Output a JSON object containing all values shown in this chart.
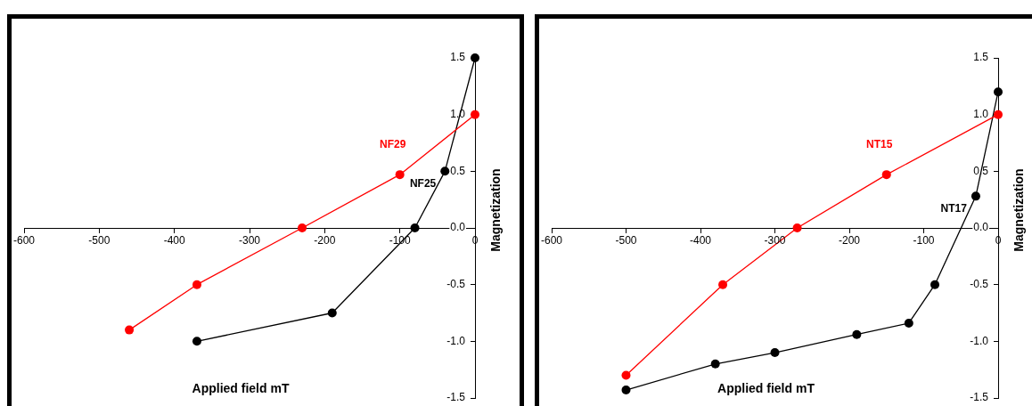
{
  "chart_data": [
    {
      "type": "line",
      "xlabel": "Applied field mT",
      "ylabel": "Magnetization",
      "xlim": [
        -600,
        0
      ],
      "ylim": [
        -1.5,
        1.5
      ],
      "xticks": [
        -600,
        -500,
        -400,
        -300,
        -200,
        -100,
        0
      ],
      "yticks": [
        -1.5,
        {
          "value": -1,
          "label": "-1.0"
        },
        -0.5,
        {
          "value": 0,
          "label": "0.0"
        },
        0.5,
        {
          "value": 1,
          "label": "1.0"
        },
        1.5
      ],
      "grid": false,
      "legend": false,
      "marker": "circle",
      "line_style": "solid",
      "series": [
        {
          "name": "NF29",
          "color": "#ff0000",
          "x": [
            0,
            -100,
            -230,
            -370,
            -460
          ],
          "values": [
            1.0,
            0.47,
            0,
            -0.5,
            -0.9
          ]
        },
        {
          "name": "NF25",
          "color": "#000000",
          "x": [
            0,
            -40,
            -80,
            -190,
            -370
          ],
          "values": [
            1.5,
            0.5,
            0,
            -0.75,
            -1.0
          ]
        }
      ]
    },
    {
      "type": "line",
      "xlabel": "Applied field mT",
      "ylabel": "Magnetization",
      "xlim": [
        -600,
        0
      ],
      "ylim": [
        -1.5,
        1.5
      ],
      "xticks": [
        -600,
        -500,
        -400,
        -300,
        -200,
        -100,
        0
      ],
      "yticks": [
        -1.5,
        {
          "value": -1,
          "label": "-1.0"
        },
        -0.5,
        {
          "value": 0,
          "label": "0.0"
        },
        0.5,
        {
          "value": 1,
          "label": "1.0"
        },
        1.5
      ],
      "grid": false,
      "legend": false,
      "marker": "circle",
      "line_style": "solid",
      "series": [
        {
          "name": "NT15",
          "color": "#ff0000",
          "x": [
            0,
            -150,
            -270,
            -370,
            -500
          ],
          "values": [
            1.0,
            0.47,
            0,
            -0.5,
            -1.3
          ]
        },
        {
          "name": "NT17",
          "color": "#000000",
          "x": [
            0,
            -30,
            -85,
            -120,
            -190,
            -300,
            -380,
            -500
          ],
          "values": [
            1.2,
            0.28,
            -0.5,
            -0.84,
            -0.94,
            -1.1,
            -1.2,
            -1.43
          ]
        }
      ]
    }
  ]
}
